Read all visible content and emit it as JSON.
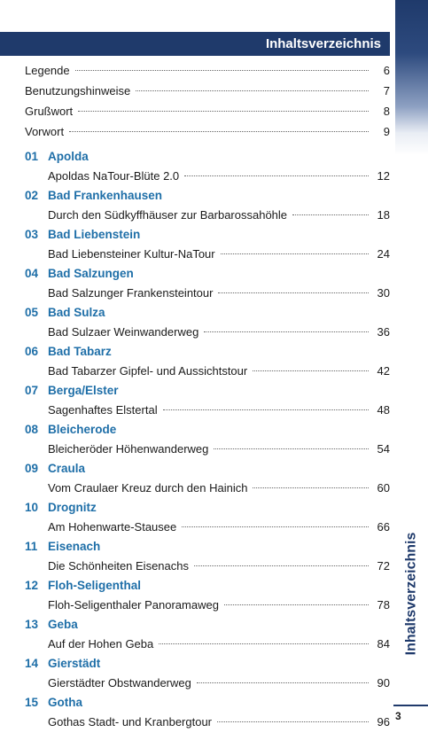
{
  "header": {
    "title": "Inhaltsverzeichnis"
  },
  "sidebar": {
    "title": "Inhaltsverzeichnis",
    "page_number": "3"
  },
  "front_matter": [
    {
      "label": "Legende",
      "page": "6"
    },
    {
      "label": "Benutzungshinweise",
      "page": "7"
    },
    {
      "label": "Grußwort",
      "page": "8"
    },
    {
      "label": "Vorwort",
      "page": "9"
    }
  ],
  "chapters": [
    {
      "num": "01",
      "title": "Apolda",
      "tour": "Apoldas NaTour-Blüte 2.0",
      "page": "12"
    },
    {
      "num": "02",
      "title": "Bad Frankenhausen",
      "tour": "Durch den Südkyffhäuser zur Barbarossahöhle",
      "page": "18"
    },
    {
      "num": "03",
      "title": "Bad Liebenstein",
      "tour": "Bad Liebensteiner Kultur-NaTour",
      "page": "24"
    },
    {
      "num": "04",
      "title": "Bad Salzungen",
      "tour": "Bad Salzunger Frankensteintour",
      "page": "30"
    },
    {
      "num": "05",
      "title": "Bad Sulza",
      "tour": "Bad Sulzaer Weinwanderweg",
      "page": "36"
    },
    {
      "num": "06",
      "title": "Bad Tabarz",
      "tour": "Bad Tabarzer Gipfel- und Aussichtstour",
      "page": "42"
    },
    {
      "num": "07",
      "title": "Berga/Elster",
      "tour": "Sagenhaftes Elstertal",
      "page": "48"
    },
    {
      "num": "08",
      "title": "Bleicherode",
      "tour": "Bleicheröder Höhenwanderweg",
      "page": "54"
    },
    {
      "num": "09",
      "title": "Craula",
      "tour": "Vom Craulaer Kreuz durch den Hainich",
      "page": "60"
    },
    {
      "num": "10",
      "title": "Drognitz",
      "tour": "Am Hohenwarte-Stausee",
      "page": "66"
    },
    {
      "num": "11",
      "title": "Eisenach",
      "tour": "Die Schönheiten Eisenachs",
      "page": "72"
    },
    {
      "num": "12",
      "title": "Floh-Seligenthal",
      "tour": "Floh-Seligenthaler Panoramaweg",
      "page": "78"
    },
    {
      "num": "13",
      "title": "Geba",
      "tour": "Auf der Hohen Geba",
      "page": "84"
    },
    {
      "num": "14",
      "title": "Gierstädt",
      "tour": "Gierstädter Obstwanderweg",
      "page": "90"
    },
    {
      "num": "15",
      "title": "Gotha",
      "tour": "Gothas Stadt- und Kranbergtour",
      "page": "96"
    }
  ]
}
